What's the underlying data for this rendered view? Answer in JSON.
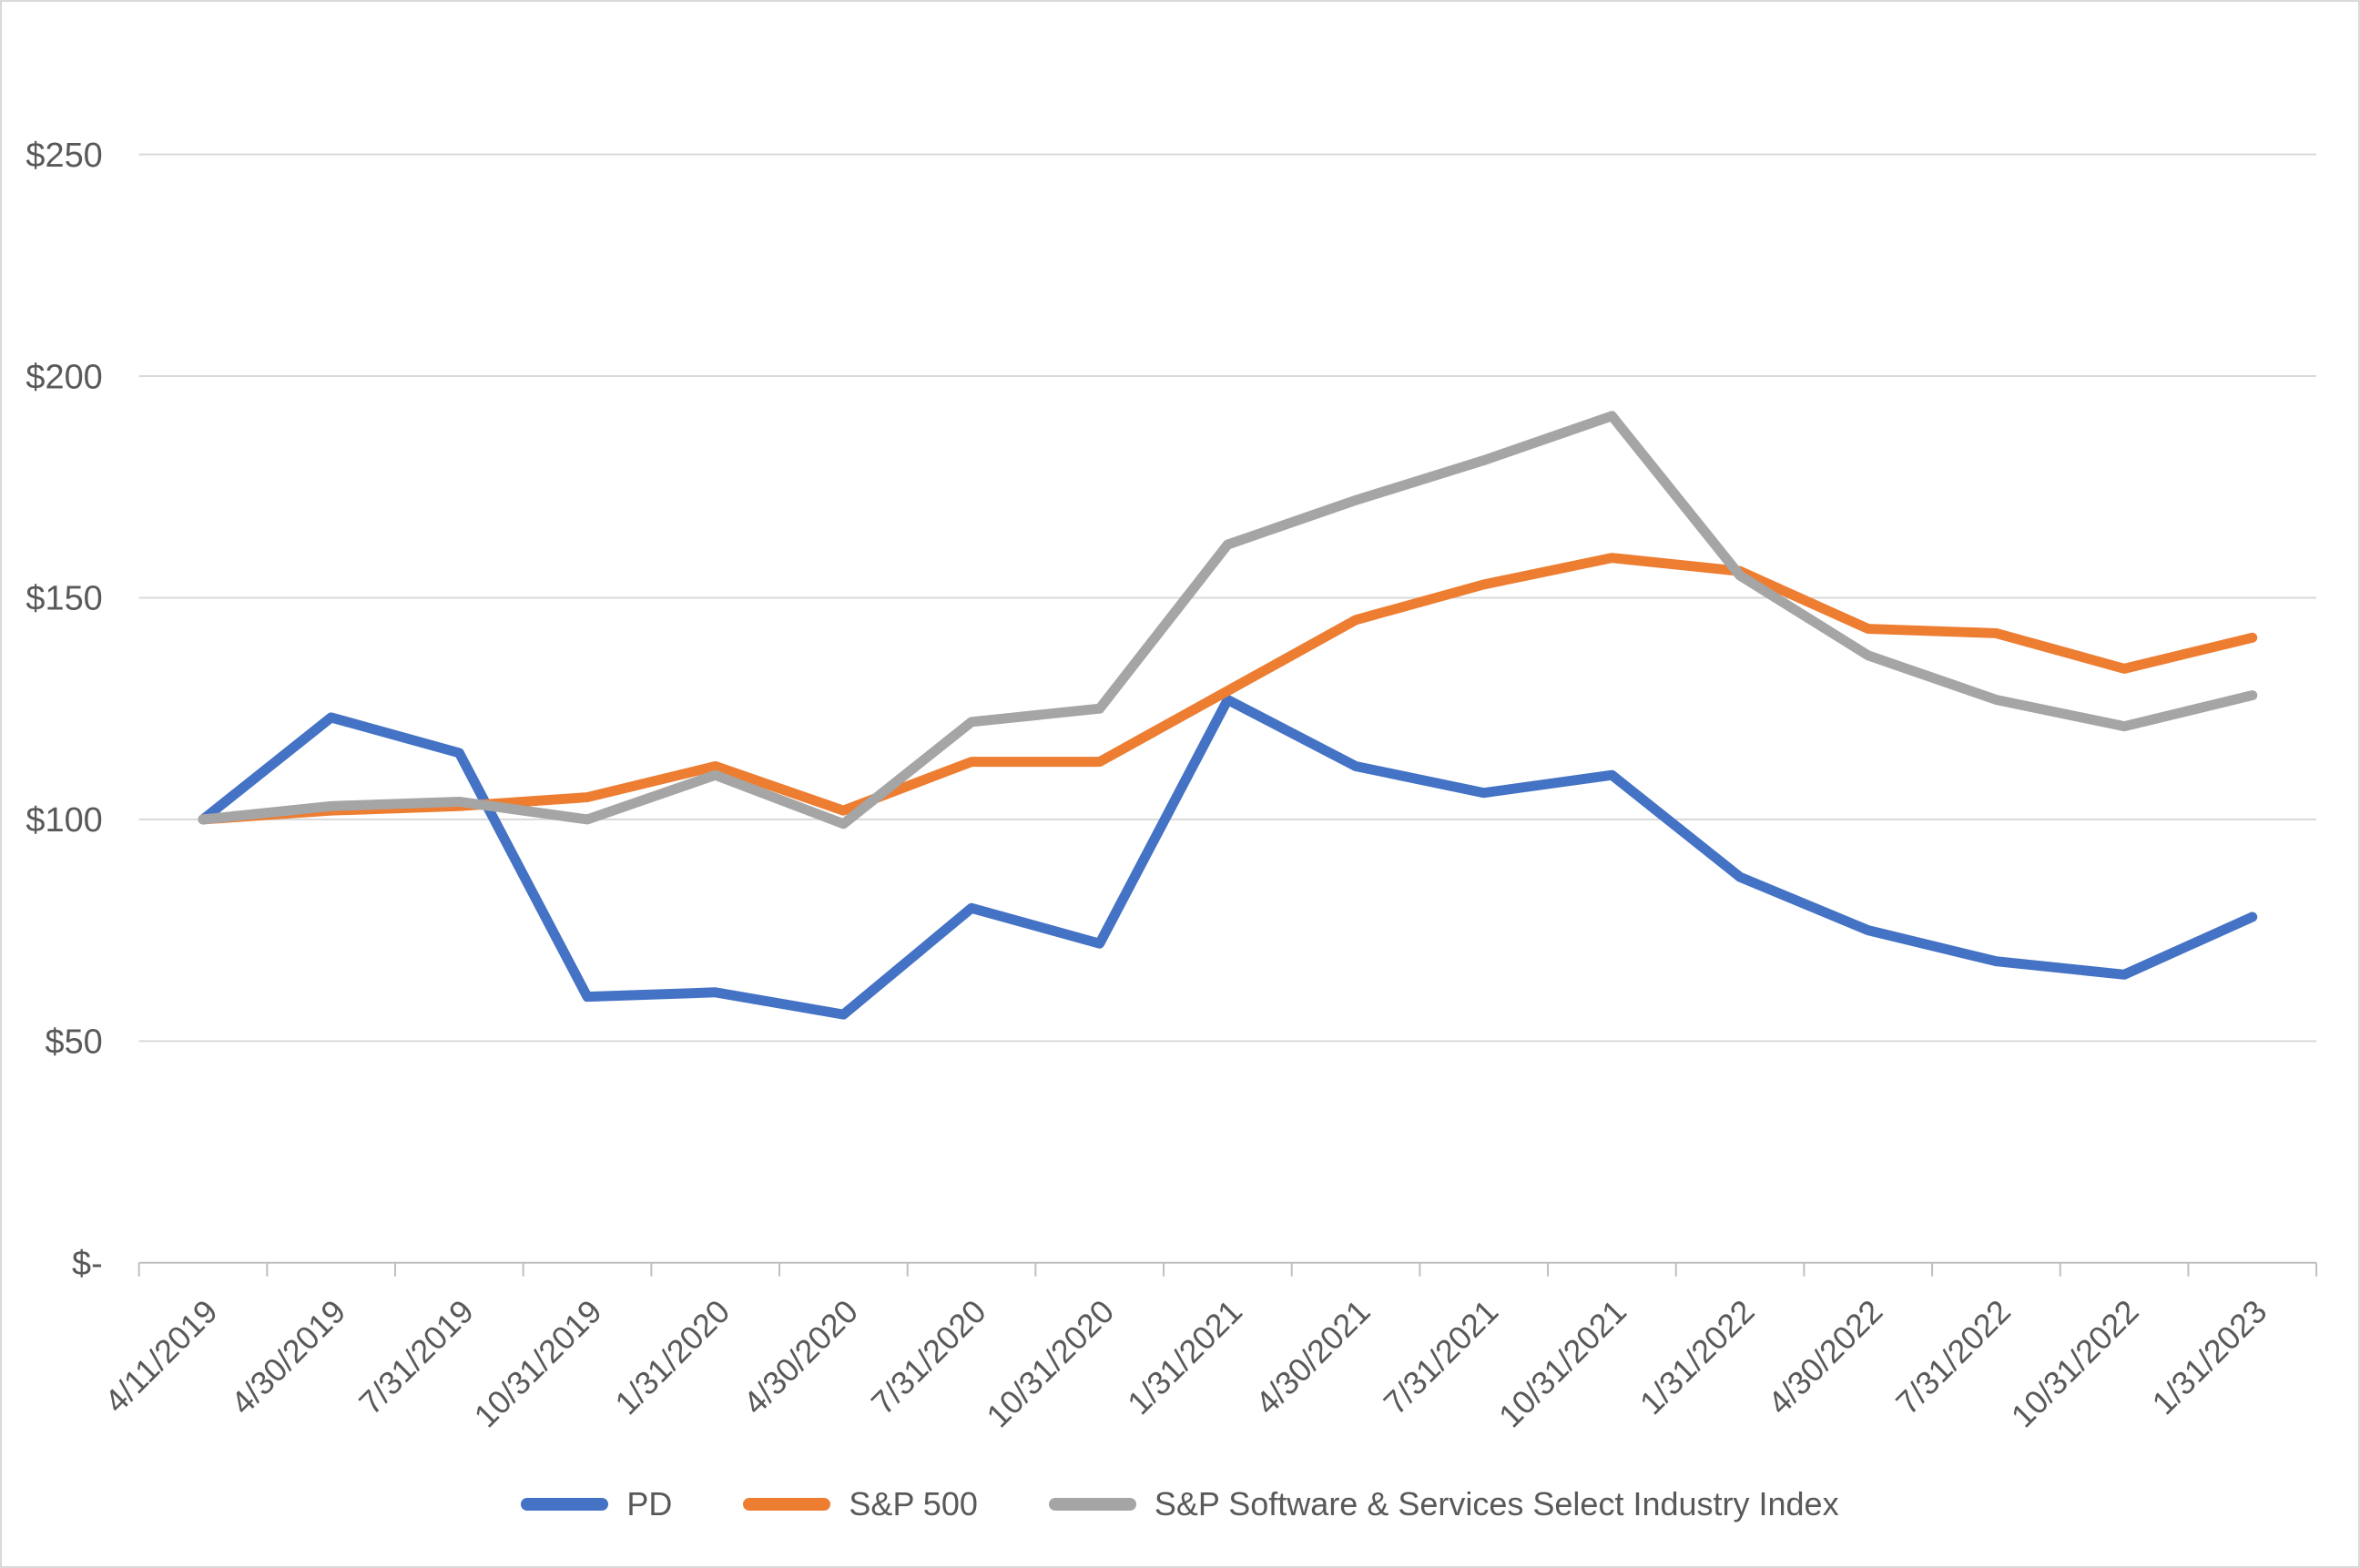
{
  "chart_data": {
    "type": "line",
    "title": "",
    "xlabel": "",
    "ylabel": "",
    "x": [
      "4/11/2019",
      "4/30/2019",
      "7/31/2019",
      "10/31/2019",
      "1/31/2020",
      "4/30/2020",
      "7/31/2020",
      "10/31/2020",
      "1/31/2021",
      "4/30/2021",
      "7/31/2021",
      "10/31/2021",
      "1/31/2022",
      "4/30/2022",
      "7/31/2022",
      "10/31/2022",
      "1/31/2023"
    ],
    "series": [
      {
        "name": "PD",
        "color": "#4472C4",
        "values": [
          100,
          123,
          115,
          60,
          61,
          56,
          80,
          72,
          127,
          112,
          106,
          110,
          87,
          75,
          68,
          65,
          78
        ]
      },
      {
        "name": "S&P 500",
        "color": "#ED7D31",
        "values": [
          100,
          102,
          103,
          105,
          112,
          102,
          113,
          113,
          129,
          145,
          153,
          159,
          156,
          143,
          142,
          134,
          141
        ]
      },
      {
        "name": "S&P Software & Services Select Industry Index",
        "color": "#A5A5A5",
        "values": [
          100,
          103,
          104,
          100,
          110,
          99,
          122,
          125,
          162,
          172,
          181,
          191,
          155,
          137,
          127,
          121,
          128
        ]
      }
    ],
    "ylim": [
      0,
      250
    ],
    "ytick_step": 50,
    "yticks": [
      {
        "value": 0,
        "label": "$-"
      },
      {
        "value": 50,
        "label": "$50"
      },
      {
        "value": 100,
        "label": "$100"
      },
      {
        "value": 150,
        "label": "$150"
      },
      {
        "value": 200,
        "label": "$200"
      },
      {
        "value": 250,
        "label": "$250"
      }
    ],
    "grid": true,
    "legend_position": "bottom"
  },
  "colors": {
    "text": "#595959",
    "gridline": "#d9d9d9",
    "axis_line": "#bfbfbf",
    "background": "#ffffff",
    "frame_border": "#d9d9d9"
  }
}
